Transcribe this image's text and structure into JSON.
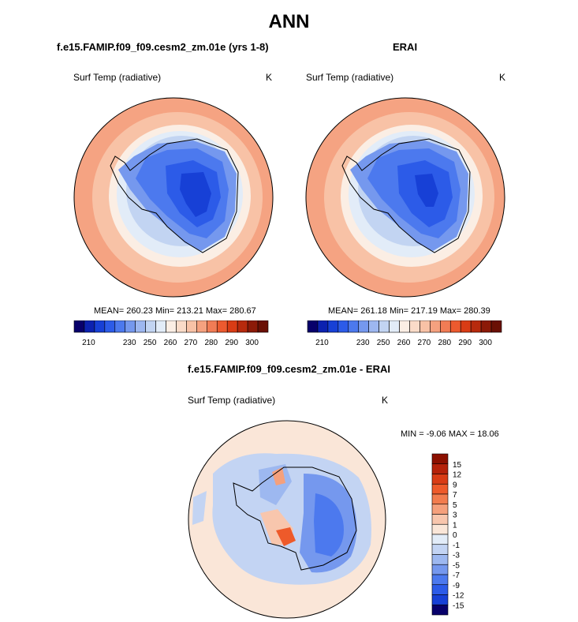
{
  "figure": {
    "main_title": "ANN",
    "units": "K"
  },
  "chart_data": [
    {
      "type": "heatmap",
      "title": "f.e15.FAMIP.f09_f09.cesm2_zm.01e (yrs 1-8)",
      "variable": "Surf Temp (radiative)",
      "units": "K",
      "projection": "south polar stereographic",
      "stats": {
        "mean": 260.23,
        "min": 213.21,
        "max": 280.67,
        "label": "MEAN= 260.23  Min= 213.21  Max= 280.67"
      },
      "colorbar": {
        "levels": [
          205,
          210,
          215,
          220,
          225,
          230,
          240,
          250,
          255,
          260,
          265,
          270,
          275,
          280,
          285,
          290,
          295,
          300
        ],
        "tick_labels": [
          "210",
          "230",
          "250",
          "260",
          "270",
          "280",
          "290",
          "300"
        ],
        "colors": [
          "#08006b",
          "#0c22b0",
          "#1740d6",
          "#2c5be8",
          "#4c79ee",
          "#7598ee",
          "#9db7f0",
          "#c2d4f2",
          "#e2ecf8",
          "#fbeee4",
          "#fadbc8",
          "#f8c2a6",
          "#f5a17f",
          "#f17c55",
          "#ec5a2f",
          "#d93c15",
          "#b72a0d",
          "#8c1a08",
          "#6a1005"
        ]
      }
    },
    {
      "type": "heatmap",
      "title": "ERAI",
      "variable": "Surf Temp (radiative)",
      "units": "K",
      "projection": "south polar stereographic",
      "stats": {
        "mean": 261.18,
        "min": 217.19,
        "max": 280.39,
        "label": "MEAN= 261.18  Min= 217.19  Max= 280.39"
      },
      "colorbar": {
        "levels": [
          205,
          210,
          215,
          220,
          225,
          230,
          240,
          250,
          255,
          260,
          265,
          270,
          275,
          280,
          285,
          290,
          295,
          300
        ],
        "tick_labels": [
          "210",
          "230",
          "250",
          "260",
          "270",
          "280",
          "290",
          "300"
        ],
        "colors": [
          "#08006b",
          "#0c22b0",
          "#1740d6",
          "#2c5be8",
          "#4c79ee",
          "#7598ee",
          "#9db7f0",
          "#c2d4f2",
          "#e2ecf8",
          "#fbeee4",
          "#fadbc8",
          "#f8c2a6",
          "#f5a17f",
          "#f17c55",
          "#ec5a2f",
          "#d93c15",
          "#b72a0d",
          "#8c1a08",
          "#6a1005"
        ]
      }
    },
    {
      "type": "heatmap",
      "title": "f.e15.FAMIP.f09_f09.cesm2_zm.01e - ERAI",
      "variable": "Surf Temp (radiative)",
      "units": "K",
      "projection": "south polar stereographic",
      "stats": {
        "min": -9.06,
        "max": 18.06,
        "label": "MIN =  -9.06 MAX =  18.06"
      },
      "colorbar": {
        "orientation": "vertical",
        "tick_labels": [
          "15",
          "12",
          "9",
          "7",
          "5",
          "3",
          "1",
          "0",
          "-1",
          "-3",
          "-5",
          "-7",
          "-9",
          "-12",
          "-15"
        ],
        "colors": [
          "#8c1000",
          "#b5220a",
          "#d93c15",
          "#ee5a2a",
          "#f27c4e",
          "#f5a07c",
          "#f8c6ad",
          "#fae6d8",
          "#e2ecf8",
          "#c3d4f3",
          "#9db8f0",
          "#7598ee",
          "#4c79ee",
          "#2c5be8",
          "#1740d6",
          "#08006b"
        ]
      }
    }
  ]
}
